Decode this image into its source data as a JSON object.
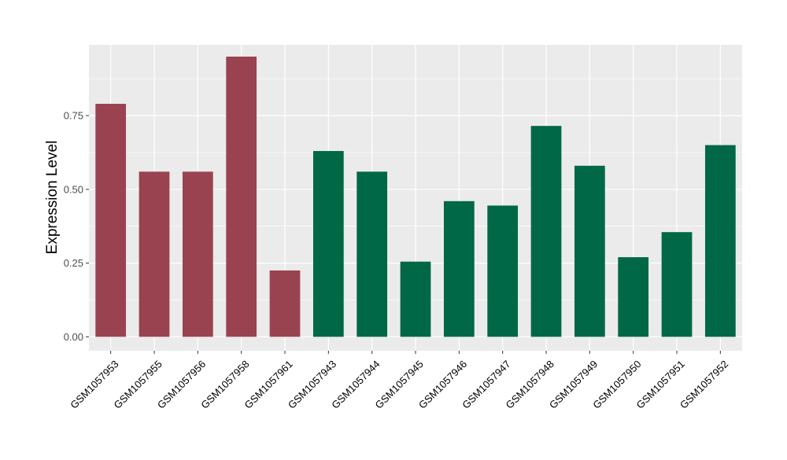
{
  "chart_data": {
    "type": "bar",
    "title": "",
    "xlabel": "",
    "ylabel": "Expression Level",
    "ylim": [
      -0.047,
      0.99
    ],
    "yticks": [
      0.0,
      0.25,
      0.5,
      0.75
    ],
    "ytick_labels": [
      "0.00",
      "0.25",
      "0.50",
      "0.75"
    ],
    "grid": true,
    "legend": "none",
    "categories": [
      "GSM1057953",
      "GSM1057955",
      "GSM1057956",
      "GSM1057958",
      "GSM1057961",
      "GSM1057943",
      "GSM1057944",
      "GSM1057945",
      "GSM1057946",
      "GSM1057947",
      "GSM1057948",
      "GSM1057949",
      "GSM1057950",
      "GSM1057951",
      "GSM1057952"
    ],
    "values": [
      0.79,
      0.56,
      0.56,
      0.95,
      0.225,
      0.63,
      0.56,
      0.255,
      0.46,
      0.445,
      0.715,
      0.58,
      0.27,
      0.355,
      0.65
    ],
    "bar_colors": [
      "#9a4350",
      "#9a4350",
      "#9a4350",
      "#9a4350",
      "#9a4350",
      "#006846",
      "#006846",
      "#006846",
      "#006846",
      "#006846",
      "#006846",
      "#006846",
      "#006846",
      "#006846",
      "#006846"
    ],
    "panel_background": "#ebebeb",
    "gridline_color": "#ffffff"
  }
}
